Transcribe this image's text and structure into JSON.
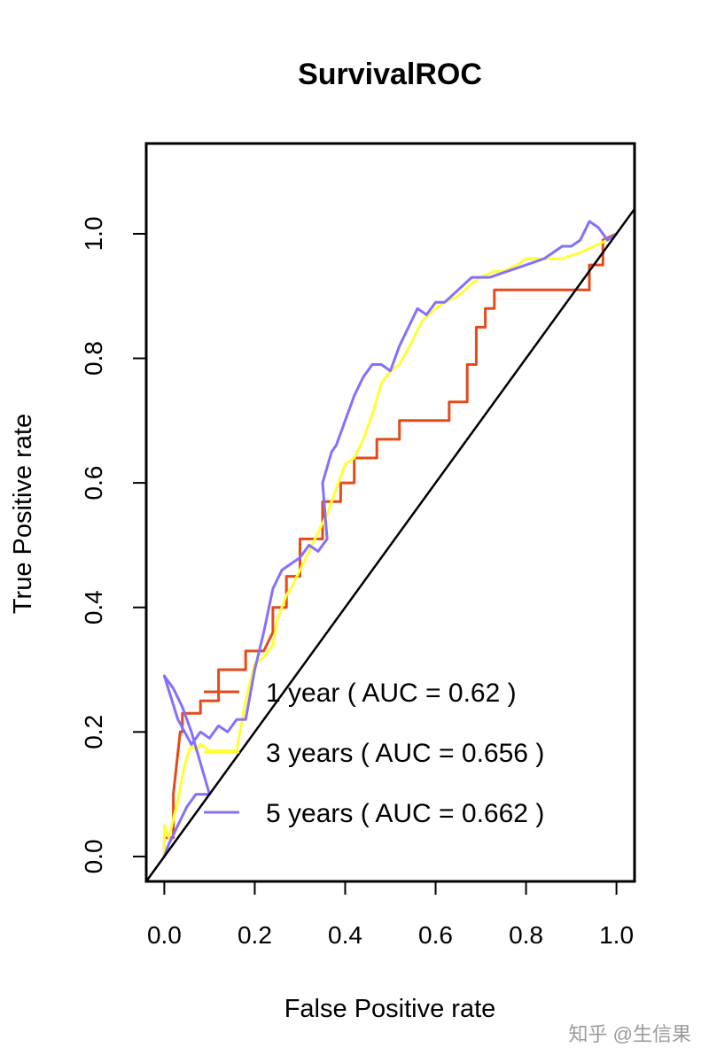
{
  "chart_data": {
    "type": "line",
    "title": "SurvivalROC",
    "xlabel": "False Positive rate",
    "ylabel": "True Positive rate",
    "xlim": [
      -0.04,
      1.04
    ],
    "ylim": [
      -0.04,
      1.145
    ],
    "xticks": [
      "0.0",
      "0.2",
      "0.4",
      "0.6",
      "0.8",
      "1.0"
    ],
    "yticks": [
      "0.0",
      "0.2",
      "0.4",
      "0.6",
      "0.8",
      "1.0"
    ],
    "xtick_values": [
      0,
      0.2,
      0.4,
      0.6,
      0.8,
      1.0
    ],
    "ytick_values": [
      0,
      0.2,
      0.4,
      0.6,
      0.8,
      1.0
    ],
    "reference_line": {
      "x": [
        -0.04,
        1.04
      ],
      "y": [
        -0.04,
        1.04
      ],
      "color": "#000000"
    },
    "legend_position": "bottom-right",
    "series": [
      {
        "name": "1 year",
        "legend": "1 year ( AUC =  0.62 )",
        "color": "#e64a19",
        "x": [
          0,
          0,
          0.02,
          0.02,
          0.035,
          0.04,
          0.04,
          0.06,
          0.08,
          0.08,
          0.12,
          0.12,
          0.18,
          0.18,
          0.22,
          0.24,
          0.24,
          0.27,
          0.27,
          0.3,
          0.3,
          0.35,
          0.35,
          0.39,
          0.39,
          0.42,
          0.42,
          0.47,
          0.47,
          0.52,
          0.52,
          0.63,
          0.63,
          0.67,
          0.67,
          0.69,
          0.69,
          0.71,
          0.71,
          0.73,
          0.73,
          0.81,
          0.81,
          0.94,
          0.94,
          0.97,
          0.97,
          1.0
        ],
        "y": [
          0,
          0.03,
          0.03,
          0.1,
          0.2,
          0.2,
          0.23,
          0.23,
          0.23,
          0.25,
          0.25,
          0.3,
          0.3,
          0.33,
          0.33,
          0.36,
          0.4,
          0.4,
          0.45,
          0.45,
          0.51,
          0.51,
          0.57,
          0.57,
          0.6,
          0.6,
          0.64,
          0.64,
          0.67,
          0.67,
          0.7,
          0.7,
          0.73,
          0.73,
          0.79,
          0.79,
          0.85,
          0.85,
          0.88,
          0.88,
          0.91,
          0.91,
          0.91,
          0.91,
          0.95,
          0.95,
          0.99,
          1.0
        ]
      },
      {
        "name": "3 years",
        "legend": "3 years ( AUC =  0.656 )",
        "color": "#ffff33",
        "x": [
          0,
          0,
          0.01,
          0.02,
          0.03,
          0.04,
          0.05,
          0.06,
          0.07,
          0.08,
          0.1,
          0.12,
          0.13,
          0.16,
          0.18,
          0.2,
          0.22,
          0.24,
          0.25,
          0.27,
          0.28,
          0.3,
          0.32,
          0.34,
          0.36,
          0.38,
          0.4,
          0.42,
          0.44,
          0.46,
          0.48,
          0.5,
          0.52,
          0.55,
          0.57,
          0.6,
          0.62,
          0.65,
          0.68,
          0.7,
          0.73,
          0.75,
          0.78,
          0.8,
          0.84,
          0.88,
          0.92,
          0.95,
          0.98,
          1.0
        ],
        "y": [
          0,
          0.05,
          0.03,
          0.06,
          0.09,
          0.13,
          0.16,
          0.18,
          0.17,
          0.18,
          0.17,
          0.17,
          0.17,
          0.17,
          0.25,
          0.31,
          0.32,
          0.34,
          0.38,
          0.42,
          0.43,
          0.46,
          0.49,
          0.52,
          0.55,
          0.59,
          0.63,
          0.64,
          0.67,
          0.71,
          0.76,
          0.78,
          0.79,
          0.83,
          0.86,
          0.88,
          0.89,
          0.9,
          0.92,
          0.93,
          0.94,
          0.94,
          0.95,
          0.96,
          0.96,
          0.96,
          0.97,
          0.98,
          0.99,
          1.0
        ]
      },
      {
        "name": "5 years",
        "legend": "5 years ( AUC =  0.662 )",
        "color": "#8470ff",
        "x": [
          0,
          0.01,
          0.03,
          0.05,
          0.07,
          0.1,
          0.08,
          0.06,
          0.04,
          0.02,
          0.0,
          0.03,
          0.06,
          0.08,
          0.1,
          0.12,
          0.14,
          0.16,
          0.18,
          0.2,
          0.22,
          0.24,
          0.26,
          0.28,
          0.3,
          0.32,
          0.34,
          0.36,
          0.35,
          0.37,
          0.38,
          0.4,
          0.42,
          0.44,
          0.46,
          0.48,
          0.5,
          0.52,
          0.54,
          0.56,
          0.58,
          0.6,
          0.62,
          0.65,
          0.68,
          0.72,
          0.76,
          0.8,
          0.84,
          0.88,
          0.9,
          0.92,
          0.94,
          0.96,
          0.98,
          1.0
        ],
        "y": [
          0,
          0.02,
          0.05,
          0.08,
          0.1,
          0.1,
          0.15,
          0.2,
          0.24,
          0.27,
          0.29,
          0.22,
          0.18,
          0.2,
          0.19,
          0.21,
          0.2,
          0.22,
          0.22,
          0.3,
          0.36,
          0.43,
          0.46,
          0.47,
          0.48,
          0.5,
          0.49,
          0.51,
          0.6,
          0.65,
          0.66,
          0.7,
          0.74,
          0.77,
          0.79,
          0.79,
          0.78,
          0.82,
          0.85,
          0.88,
          0.87,
          0.89,
          0.89,
          0.91,
          0.93,
          0.93,
          0.94,
          0.95,
          0.96,
          0.98,
          0.98,
          0.99,
          1.02,
          1.01,
          0.99,
          1.0
        ]
      }
    ]
  },
  "watermark": "知乎 @生信果"
}
